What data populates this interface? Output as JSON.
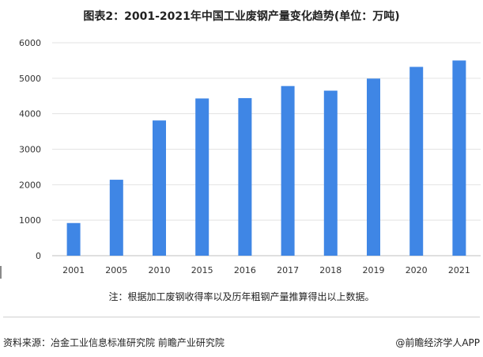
{
  "title": "图表2：2001-2021年中国工业废钢产量变化趋势(单位：万吨)",
  "note": "注：根据加工废钢收得率以及历年粗钢产量推算得出以上数据。",
  "footer": {
    "source": "资料来源：冶金工业信息标准研究院 前瞻产业研究院",
    "brand": "@前瞻经济学人APP"
  },
  "colors": {
    "bar": "#3f86e5",
    "grid": "#e3e3e3",
    "axis": "#bfbfbf"
  },
  "chart_data": {
    "type": "bar",
    "title": "图表2：2001-2021年中国工业废钢产量变化趋势(单位：万吨)",
    "categories": [
      "2001",
      "2005",
      "2010",
      "2015",
      "2016",
      "2017",
      "2018",
      "2019",
      "2020",
      "2021"
    ],
    "values": [
      920,
      2140,
      3810,
      4430,
      4440,
      4780,
      4650,
      4990,
      5320,
      5500
    ],
    "ylim": [
      0,
      6000
    ],
    "yticks": [
      0,
      1000,
      2000,
      3000,
      4000,
      5000,
      6000
    ],
    "grid": true,
    "legend": "none",
    "xlabel": "",
    "ylabel": ""
  }
}
